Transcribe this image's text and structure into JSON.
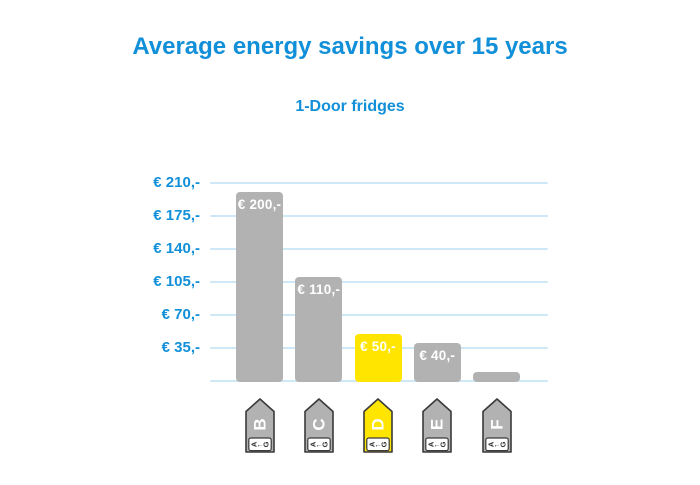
{
  "title": "Average energy savings over 15 years",
  "subtitle": "1-Door fridges",
  "colors": {
    "accent_blue": "#1190d9",
    "grid_blue": "#cfe8f7",
    "bar_grey": "#b2b2b2",
    "bar_yellow": "#ffe500",
    "bar_label_white": "#ffffff",
    "tag_outline": "#3a3a3a",
    "tag_letter_white": "#ffffff",
    "tag_scale_dark": "#333333",
    "tag_scale_bg": "#ffffff"
  },
  "chart_data": {
    "type": "bar",
    "categories": [
      "B",
      "C",
      "D",
      "E",
      "F"
    ],
    "values": [
      200,
      110,
      50,
      40,
      10
    ],
    "bar_labels": [
      "€ 200,-",
      "€ 110,-",
      "€ 50,-",
      "€ 40,-",
      ""
    ],
    "highlight_index": 2,
    "highlight_category": "D",
    "y_ticks": [
      "€ 210,-",
      "€ 175,-",
      "€ 140,-",
      "€ 105,-",
      "€ 70,-",
      "€ 35,-"
    ],
    "y_tick_values": [
      210,
      175,
      140,
      105,
      70,
      35
    ],
    "ylim": [
      0,
      210
    ],
    "grid": "horizontal-light-blue",
    "legend": "none",
    "x_axis_icons": "eu-energy-class-arrow-tags",
    "tag_scale": {
      "top_class": "A",
      "arrow": "←",
      "bottom_class": "G"
    }
  }
}
